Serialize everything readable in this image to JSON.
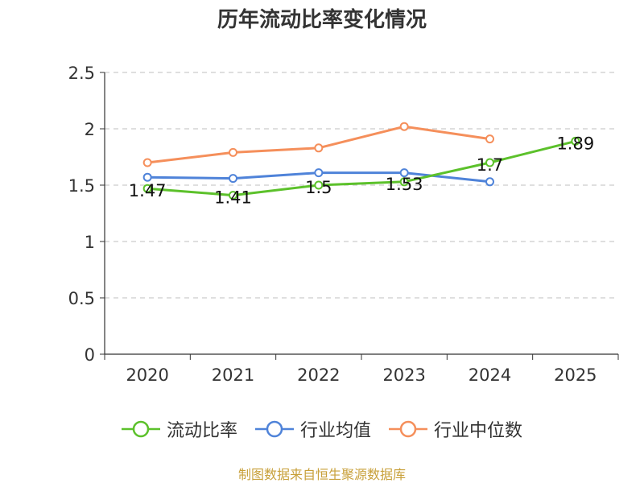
{
  "chart_data": {
    "type": "line",
    "title": "历年流动比率变化情况",
    "categories": [
      "2020",
      "2021",
      "2022",
      "2023",
      "2024",
      "2025"
    ],
    "ylim": [
      0,
      2.5
    ],
    "yticks": [
      "0",
      "0.5",
      "1",
      "1.5",
      "2",
      "2.5"
    ],
    "grid": true,
    "legend_position": "bottom",
    "series": [
      {
        "name": "流动比率",
        "color": "#5cc12b",
        "values": [
          1.47,
          1.41,
          1.5,
          1.53,
          1.7,
          1.89
        ],
        "labels": [
          "1.47",
          "1.41",
          "1.5",
          "1.53",
          "1.7",
          "1.89"
        ]
      },
      {
        "name": "行业均值",
        "color": "#4f83d9",
        "values": [
          1.57,
          1.56,
          1.61,
          1.61,
          1.53,
          null
        ]
      },
      {
        "name": "行业中位数",
        "color": "#f58f5b",
        "values": [
          1.7,
          1.79,
          1.83,
          2.02,
          1.91,
          null
        ]
      }
    ]
  },
  "source": "制图数据来自恒生聚源数据库"
}
